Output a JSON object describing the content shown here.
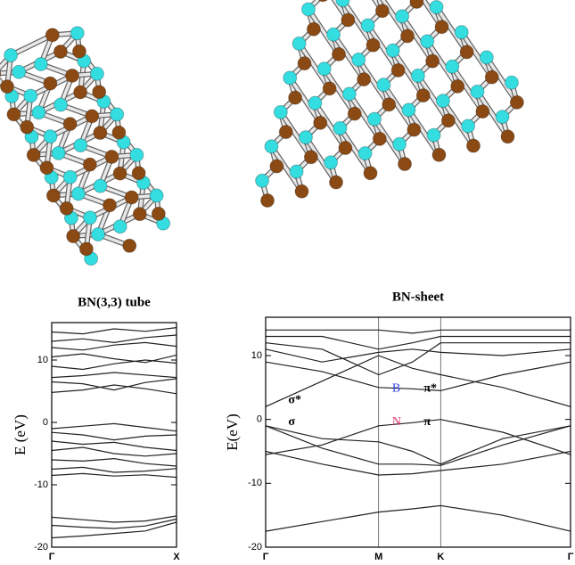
{
  "chart_data": [
    {
      "type": "line",
      "title": "BN(3,3) tube",
      "ylabel": "E (eV)",
      "x": [
        0,
        0.25,
        0.5,
        0.75,
        1
      ],
      "xlim": [
        0,
        1
      ],
      "xticks": [
        {
          "value": 0,
          "label": "Γ"
        },
        {
          "value": 1,
          "label": "X"
        }
      ],
      "ylim": [
        -20,
        16
      ],
      "yticks": [
        -20,
        -10,
        0,
        10
      ],
      "xgrid": false,
      "series": [
        {
          "color": "#222",
          "values": [
            4.8,
            5.2,
            6,
            5.4,
            4.6
          ]
        },
        {
          "color": "#222",
          "values": [
            6.5,
            6.2,
            5.2,
            6.4,
            7
          ]
        },
        {
          "color": "#222",
          "values": [
            7.2,
            7.5,
            8,
            7.6,
            7.2
          ]
        },
        {
          "color": "#222",
          "values": [
            9,
            8.5,
            9.4,
            10,
            9.5
          ]
        },
        {
          "color": "#222",
          "values": [
            10.5,
            11,
            10.2,
            9.6,
            10.8
          ]
        },
        {
          "color": "#222",
          "values": [
            12,
            11.6,
            12.4,
            12.8,
            12.2
          ]
        },
        {
          "color": "#222",
          "values": [
            13,
            13.4,
            12.8,
            13.6,
            14
          ]
        },
        {
          "color": "#222",
          "values": [
            14.5,
            14.2,
            15,
            14.6,
            15.2
          ]
        },
        {
          "color": "#222",
          "values": [
            -1,
            -0.6,
            -0.2,
            -0.8,
            -1.4
          ]
        },
        {
          "color": "#222",
          "values": [
            -1.6,
            -2,
            -2.8,
            -2.2,
            -2
          ]
        },
        {
          "color": "#222",
          "values": [
            -3,
            -3.5,
            -3.2,
            -4,
            -4.5
          ]
        },
        {
          "color": "#222",
          "values": [
            -4.5,
            -4,
            -5,
            -5.4,
            -5
          ]
        },
        {
          "color": "#222",
          "values": [
            -6,
            -6.2,
            -5.8,
            -6.6,
            -7
          ]
        },
        {
          "color": "#222",
          "values": [
            -7.5,
            -7.2,
            -8,
            -7.8,
            -7.4
          ]
        },
        {
          "color": "#222",
          "values": [
            -8.5,
            -8.2,
            -8.6,
            -8.4,
            -8.8
          ]
        },
        {
          "color": "#222",
          "values": [
            -15.2,
            -15.6,
            -16,
            -15.8,
            -15
          ]
        },
        {
          "color": "#222",
          "values": [
            -16.5,
            -16.8,
            -17,
            -16.6,
            -15.5
          ]
        },
        {
          "color": "#222",
          "values": [
            -18.5,
            -18.2,
            -17.8,
            -17.4,
            -16
          ]
        }
      ]
    },
    {
      "type": "line",
      "title": "BN-sheet",
      "ylabel": "E(eV)",
      "x": [
        0,
        0.5,
        1,
        1.3,
        1.55,
        2.1,
        2.7
      ],
      "xlim": [
        0,
        2.7
      ],
      "xticks": [
        {
          "value": 0,
          "label": "Γ"
        },
        {
          "value": 1,
          "label": "M"
        },
        {
          "value": 1.55,
          "label": "K"
        },
        {
          "value": 2.7,
          "label": "Γ"
        }
      ],
      "ylim": [
        -20,
        16
      ],
      "yticks": [
        -20,
        -10,
        0,
        10
      ],
      "xgrid": true,
      "series": [
        {
          "color": "#222",
          "values": [
            -17.5,
            -16,
            -14.5,
            -14,
            -13.5,
            -15,
            -17.5
          ]
        },
        {
          "color": "#222",
          "values": [
            -5,
            -7,
            -8.7,
            -8.5,
            -8,
            -7,
            -5
          ]
        },
        {
          "color": "#222",
          "values": [
            -1,
            -4.5,
            -7,
            -7,
            -7.2,
            -4,
            -1
          ]
        },
        {
          "color": "#222",
          "values": [
            -1,
            -3,
            -3.5,
            -5,
            -7,
            -3,
            -1
          ]
        },
        {
          "color": "#222",
          "values": [
            -5.5,
            -4,
            -1,
            -0.5,
            0,
            -2,
            -5.5
          ]
        },
        {
          "color": "#222",
          "values": [
            9,
            7.5,
            5,
            4.8,
            4.5,
            7,
            9
          ]
        },
        {
          "color": "#222",
          "values": [
            2,
            6,
            10,
            8,
            7,
            5,
            2
          ]
        },
        {
          "color": "#222",
          "values": [
            11,
            9,
            10.5,
            11,
            10.5,
            10,
            11
          ]
        },
        {
          "color": "#222",
          "values": [
            12,
            11,
            7,
            9,
            12,
            12,
            12
          ]
        },
        {
          "color": "#222",
          "values": [
            13,
            13,
            11,
            12,
            13,
            13,
            13
          ]
        },
        {
          "color": "#222",
          "values": [
            14,
            14,
            14,
            13.5,
            14,
            14,
            14
          ]
        }
      ],
      "annotations": [
        {
          "text": "σ*"
        },
        {
          "text": "σ"
        },
        {
          "text": "B",
          "color": "#3344dd"
        },
        {
          "text": "π*"
        },
        {
          "text": "N",
          "color": "#e0306a"
        },
        {
          "text": "π"
        }
      ]
    }
  ]
}
